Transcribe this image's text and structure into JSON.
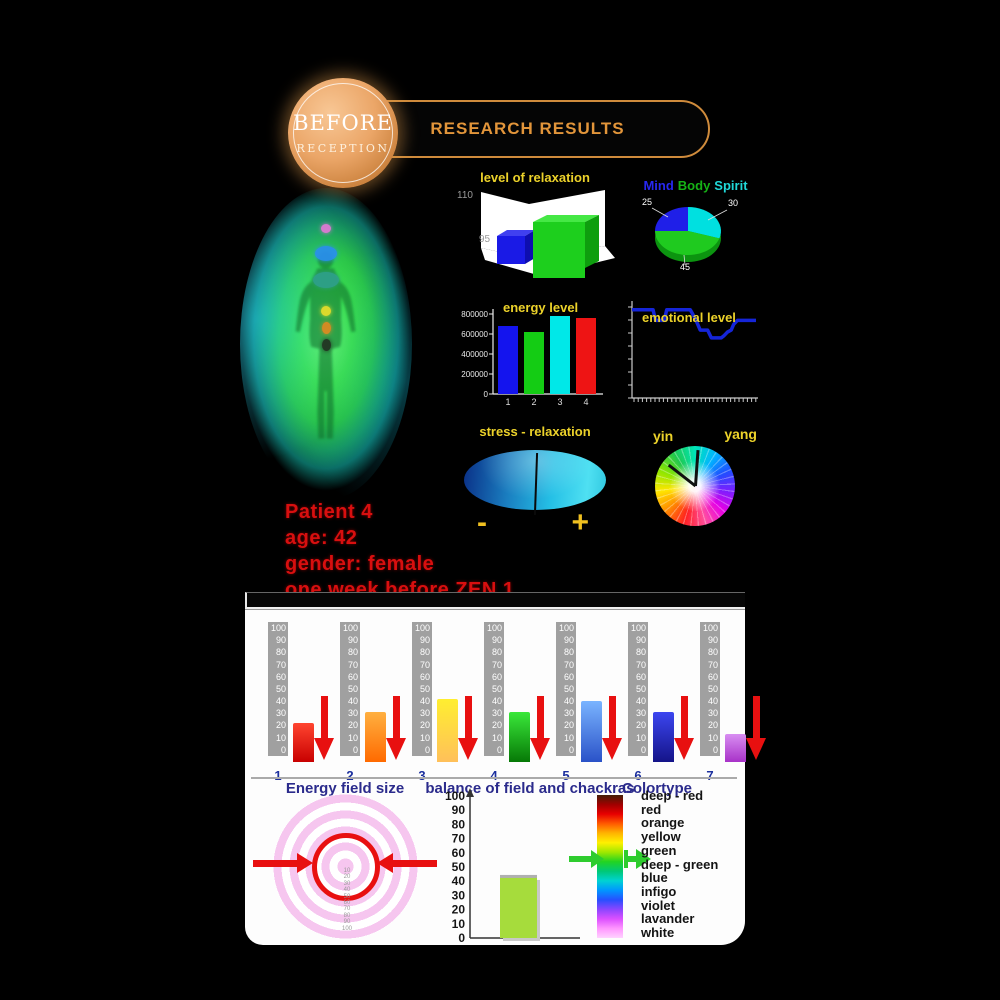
{
  "header": {
    "badge_line1": "BEFORE",
    "badge_line2": "RECEPTION",
    "banner_title": "RESEARCH RESULTS",
    "accent_color": "#e2953a"
  },
  "patient": {
    "lines": [
      "Patient 4",
      "age: 42",
      "gender: female",
      "one week before ZEN 1"
    ],
    "color": "#d80f0f"
  },
  "aura": {
    "description": "green energy field around body silhouette",
    "chakra_points": [
      {
        "name": "crown",
        "color": "#e478d8"
      },
      {
        "name": "throat",
        "color": "#2a8ef0"
      },
      {
        "name": "heart",
        "color": "#2fa08c"
      },
      {
        "name": "solar-plexus",
        "color": "#eade2a"
      },
      {
        "name": "sacral",
        "color": "#e08a20"
      },
      {
        "name": "root",
        "color": "#223222"
      }
    ]
  },
  "chart_data": [
    {
      "id": "level_of_relaxation",
      "type": "bar",
      "style": "3d-cubes",
      "title": "level of relaxation",
      "axis_labels": [
        "110",
        "95"
      ],
      "series": [
        {
          "name": "bar-1",
          "color": "#1a1ae6",
          "value": 95
        },
        {
          "name": "bar-2",
          "color": "#1dcf1d",
          "value": 110
        }
      ],
      "baseline": 80
    },
    {
      "id": "mind_body_spirit",
      "type": "pie",
      "title_words": [
        {
          "text": "Mind",
          "color": "#2828f0"
        },
        {
          "text": "Body",
          "color": "#16b316"
        },
        {
          "text": "Spirit",
          "color": "#20d8d8"
        }
      ],
      "slices": [
        {
          "label": "30",
          "value": 30,
          "color": "#00e0e0"
        },
        {
          "label": "45",
          "value": 45,
          "color": "#1fca1f"
        },
        {
          "label": "25",
          "value": 25,
          "color": "#1f1fe8"
        }
      ],
      "start_angle_deg": 0,
      "direction": "clockwise",
      "depth_color": "#0c9410"
    },
    {
      "id": "energy_level",
      "type": "bar",
      "title": "energy level",
      "categories": [
        "1",
        "2",
        "3",
        "4"
      ],
      "values": [
        680000,
        620000,
        780000,
        760000
      ],
      "bar_colors": [
        "#1414ee",
        "#14cc14",
        "#00e8e8",
        "#ee1414"
      ],
      "yticks": [
        "800000",
        "600000",
        "400000",
        "200000",
        "0"
      ],
      "ylim": [
        0,
        800000
      ]
    },
    {
      "id": "emotional_level",
      "type": "line",
      "title": "emotional level",
      "line_color": "#1525d8",
      "points_pct": [
        [
          0,
          91
        ],
        [
          17,
          91
        ],
        [
          19,
          80
        ],
        [
          26,
          80
        ],
        [
          28,
          91
        ],
        [
          47,
          91
        ],
        [
          50,
          84
        ],
        [
          53,
          76
        ],
        [
          55,
          70
        ],
        [
          61,
          70
        ],
        [
          64,
          62
        ],
        [
          72,
          62
        ],
        [
          74,
          64
        ],
        [
          77,
          68
        ],
        [
          80,
          70
        ],
        [
          82,
          76
        ],
        [
          85,
          80
        ],
        [
          100,
          80
        ]
      ]
    },
    {
      "id": "stress_relaxation",
      "type": "gauge",
      "title": "stress - relaxation",
      "minus_label": "-",
      "plus_label": "+",
      "gradient": [
        "#0a2f86",
        "#1a7ec0",
        "#25c0e6",
        "#4fe0f2"
      ],
      "needle_angle_deg": 2
    },
    {
      "id": "yin_yang",
      "type": "color-wheel",
      "left_label": "yin",
      "right_label": "yang",
      "hand_angles_deg": [
        4,
        -52
      ]
    },
    {
      "id": "chakras",
      "type": "bar",
      "scale_ticks": [
        "100",
        "90",
        "80",
        "70",
        "60",
        "50",
        "40",
        "30",
        "20",
        "10",
        "0"
      ],
      "categories": [
        "1",
        "2",
        "3",
        "4",
        "5",
        "6",
        "7"
      ],
      "values": [
        22,
        31,
        42,
        31,
        40,
        31,
        13
      ],
      "bar_colors": [
        [
          "#ff4530",
          "#c80000"
        ],
        [
          "#ffb040",
          "#ff6a00"
        ],
        [
          "#ffee30",
          "#ffc05a"
        ],
        [
          "#3ae83a",
          "#067806"
        ],
        [
          "#7ab4ff",
          "#2a52c8"
        ],
        [
          "#3c46f0",
          "#141488"
        ],
        [
          "#d88ef2",
          "#a832c8"
        ]
      ],
      "arrow_color": "#e81010",
      "arrow_direction": "down"
    },
    {
      "id": "energy_field_size",
      "type": "rings",
      "title": "Energy field size",
      "ring_color": "#f6c6ef",
      "marker_circle_color": "#e81010",
      "marker_radius_value": 40,
      "ruler_ticks": [
        "10",
        "20",
        "30",
        "40",
        "50",
        "60",
        "70",
        "80",
        "90",
        "100"
      ],
      "arrow_color": "#e81010"
    },
    {
      "id": "balance_of_field_and_chackras",
      "type": "bar",
      "title": "balance of field and chackras",
      "yticks": [
        "100",
        "90",
        "80",
        "70",
        "60",
        "50",
        "40",
        "30",
        "20",
        "10",
        "0"
      ],
      "values": [
        43
      ],
      "bar_color": "#a6dc3c",
      "ylim": [
        0,
        100
      ]
    },
    {
      "id": "colortype",
      "type": "legend",
      "title": "Colortype",
      "items": [
        "deep - red",
        "red",
        "orange",
        "yellow",
        "green",
        "deep - green",
        "blue",
        "infigo",
        "violet",
        "lavander",
        "white"
      ],
      "gradient_colors": [
        "#441f05",
        "#a00000",
        "#e80000",
        "#ff5a00",
        "#ffb400",
        "#fff000",
        "#a0e800",
        "#22d422",
        "#00c878",
        "#00d2d2",
        "#0096ff",
        "#2850ff",
        "#8c46ff",
        "#dc50ff",
        "#ff96ff",
        "#ffd2ff"
      ],
      "arrow_color": "#2ecc2e",
      "arrow_position_pct": 45
    }
  ]
}
